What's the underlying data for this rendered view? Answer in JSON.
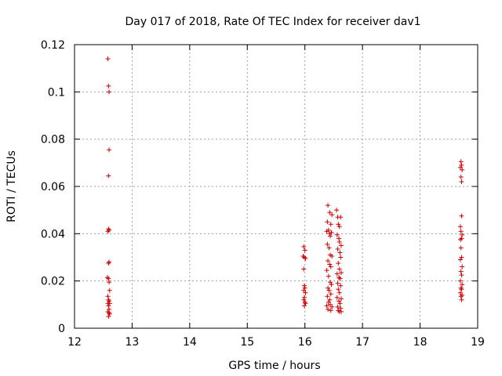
{
  "chart_data": {
    "type": "scatter",
    "title": "Day 017 of 2018, Rate Of TEC Index for receiver dav1",
    "xlabel": "GPS time / hours",
    "ylabel": "ROTI / TECUs",
    "xlim": [
      12,
      19
    ],
    "ylim": [
      0,
      0.12
    ],
    "xticks": [
      "12",
      "13",
      "14",
      "15",
      "16",
      "17",
      "18",
      "19"
    ],
    "yticks": [
      "0",
      "0.02",
      "0.04",
      "0.06",
      "0.08",
      "0.1",
      "0.12"
    ],
    "grid": true,
    "marker": "plus",
    "color": "#cc0000",
    "points": [
      [
        12.58,
        0.114
      ],
      [
        12.59,
        0.1025
      ],
      [
        12.6,
        0.1
      ],
      [
        12.6,
        0.0755
      ],
      [
        12.59,
        0.0645
      ],
      [
        12.59,
        0.042
      ],
      [
        12.6,
        0.0415
      ],
      [
        12.58,
        0.041
      ],
      [
        12.6,
        0.028
      ],
      [
        12.59,
        0.0275
      ],
      [
        12.57,
        0.0215
      ],
      [
        12.59,
        0.021
      ],
      [
        12.6,
        0.0195
      ],
      [
        12.61,
        0.016
      ],
      [
        12.58,
        0.0135
      ],
      [
        12.59,
        0.012
      ],
      [
        12.6,
        0.0115
      ],
      [
        12.58,
        0.0105
      ],
      [
        12.61,
        0.0105
      ],
      [
        12.59,
        0.0095
      ],
      [
        12.6,
        0.008
      ],
      [
        12.58,
        0.007
      ],
      [
        12.6,
        0.0065
      ],
      [
        12.61,
        0.006
      ],
      [
        12.59,
        0.005
      ],
      [
        15.98,
        0.0345
      ],
      [
        16.0,
        0.033
      ],
      [
        15.97,
        0.0305
      ],
      [
        15.99,
        0.03
      ],
      [
        16.01,
        0.0295
      ],
      [
        15.98,
        0.025
      ],
      [
        15.99,
        0.018
      ],
      [
        16.0,
        0.017
      ],
      [
        15.98,
        0.016
      ],
      [
        16.01,
        0.015
      ],
      [
        15.99,
        0.013
      ],
      [
        15.98,
        0.012
      ],
      [
        16.0,
        0.011
      ],
      [
        16.01,
        0.0105
      ],
      [
        15.99,
        0.0095
      ],
      [
        16.4,
        0.052
      ],
      [
        16.43,
        0.049
      ],
      [
        16.47,
        0.048
      ],
      [
        16.55,
        0.05
      ],
      [
        16.57,
        0.047
      ],
      [
        16.62,
        0.047
      ],
      [
        16.39,
        0.045
      ],
      [
        16.45,
        0.044
      ],
      [
        16.58,
        0.044
      ],
      [
        16.6,
        0.043
      ],
      [
        16.41,
        0.0415
      ],
      [
        16.38,
        0.041
      ],
      [
        16.43,
        0.04
      ],
      [
        16.46,
        0.0405
      ],
      [
        16.44,
        0.039
      ],
      [
        16.56,
        0.0395
      ],
      [
        16.59,
        0.038
      ],
      [
        16.6,
        0.0365
      ],
      [
        16.63,
        0.035
      ],
      [
        16.39,
        0.0355
      ],
      [
        16.42,
        0.034
      ],
      [
        16.57,
        0.0335
      ],
      [
        16.61,
        0.032
      ],
      [
        16.44,
        0.031
      ],
      [
        16.47,
        0.0305
      ],
      [
        16.62,
        0.03
      ],
      [
        16.4,
        0.0285
      ],
      [
        16.58,
        0.0275
      ],
      [
        16.43,
        0.027
      ],
      [
        16.45,
        0.026
      ],
      [
        16.6,
        0.025
      ],
      [
        16.38,
        0.0245
      ],
      [
        16.63,
        0.0235
      ],
      [
        16.56,
        0.023
      ],
      [
        16.41,
        0.022
      ],
      [
        16.59,
        0.0215
      ],
      [
        16.61,
        0.021
      ],
      [
        16.44,
        0.0195
      ],
      [
        16.57,
        0.019
      ],
      [
        16.46,
        0.0185
      ],
      [
        16.62,
        0.018
      ],
      [
        16.4,
        0.017
      ],
      [
        16.58,
        0.0165
      ],
      [
        16.42,
        0.016
      ],
      [
        16.6,
        0.015
      ],
      [
        16.45,
        0.0145
      ],
      [
        16.39,
        0.0135
      ],
      [
        16.56,
        0.013
      ],
      [
        16.63,
        0.0125
      ],
      [
        16.43,
        0.012
      ],
      [
        16.59,
        0.0115
      ],
      [
        16.41,
        0.011
      ],
      [
        16.61,
        0.0105
      ],
      [
        16.44,
        0.01
      ],
      [
        16.38,
        0.0095
      ],
      [
        16.57,
        0.009
      ],
      [
        16.47,
        0.009
      ],
      [
        16.62,
        0.0085
      ],
      [
        16.4,
        0.008
      ],
      [
        16.58,
        0.0075
      ],
      [
        16.6,
        0.007
      ],
      [
        16.45,
        0.0075
      ],
      [
        16.63,
        0.007
      ],
      [
        18.71,
        0.0705
      ],
      [
        18.72,
        0.069
      ],
      [
        18.7,
        0.068
      ],
      [
        18.73,
        0.067
      ],
      [
        18.71,
        0.064
      ],
      [
        18.72,
        0.062
      ],
      [
        18.72,
        0.0475
      ],
      [
        18.7,
        0.043
      ],
      [
        18.71,
        0.041
      ],
      [
        18.73,
        0.0395
      ],
      [
        18.72,
        0.038
      ],
      [
        18.7,
        0.0375
      ],
      [
        18.71,
        0.034
      ],
      [
        18.72,
        0.03
      ],
      [
        18.7,
        0.029
      ],
      [
        18.73,
        0.026
      ],
      [
        18.71,
        0.024
      ],
      [
        18.72,
        0.0225
      ],
      [
        18.7,
        0.02
      ],
      [
        18.73,
        0.0185
      ],
      [
        18.71,
        0.017
      ],
      [
        18.72,
        0.0165
      ],
      [
        18.7,
        0.015
      ],
      [
        18.73,
        0.014
      ],
      [
        18.71,
        0.0135
      ],
      [
        18.72,
        0.012
      ]
    ]
  }
}
